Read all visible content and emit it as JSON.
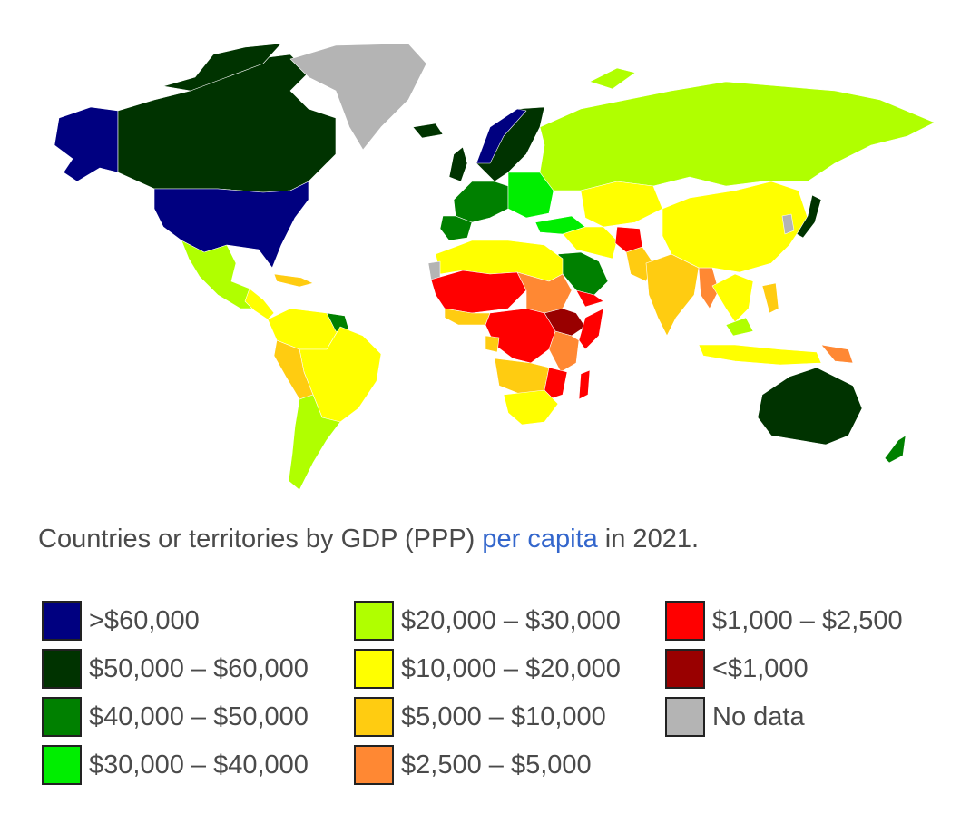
{
  "caption": {
    "before": "Countries or territories by GDP (PPP) ",
    "link": "per capita",
    "after": " in 2021."
  },
  "legend": [
    {
      "label": ">$60,000",
      "color": "#000080"
    },
    {
      "label": "$50,000 – $60,000",
      "color": "#003300"
    },
    {
      "label": "$40,000 – $50,000",
      "color": "#008000"
    },
    {
      "label": "$30,000 – $40,000",
      "color": "#00ee00"
    },
    {
      "label": "$20,000 – $30,000",
      "color": "#b0ff00"
    },
    {
      "label": "$10,000 – $20,000",
      "color": "#ffff00"
    },
    {
      "label": "$5,000 – $10,000",
      "color": "#ffcc11"
    },
    {
      "label": "$2,500 – $5,000",
      "color": "#ff8833"
    },
    {
      "label": "$1,000 – $2,500",
      "color": "#ff0000"
    },
    {
      "label": "<$1,000",
      "color": "#990000"
    },
    {
      "label": "No data",
      "color": "#b4b4b4"
    }
  ]
}
